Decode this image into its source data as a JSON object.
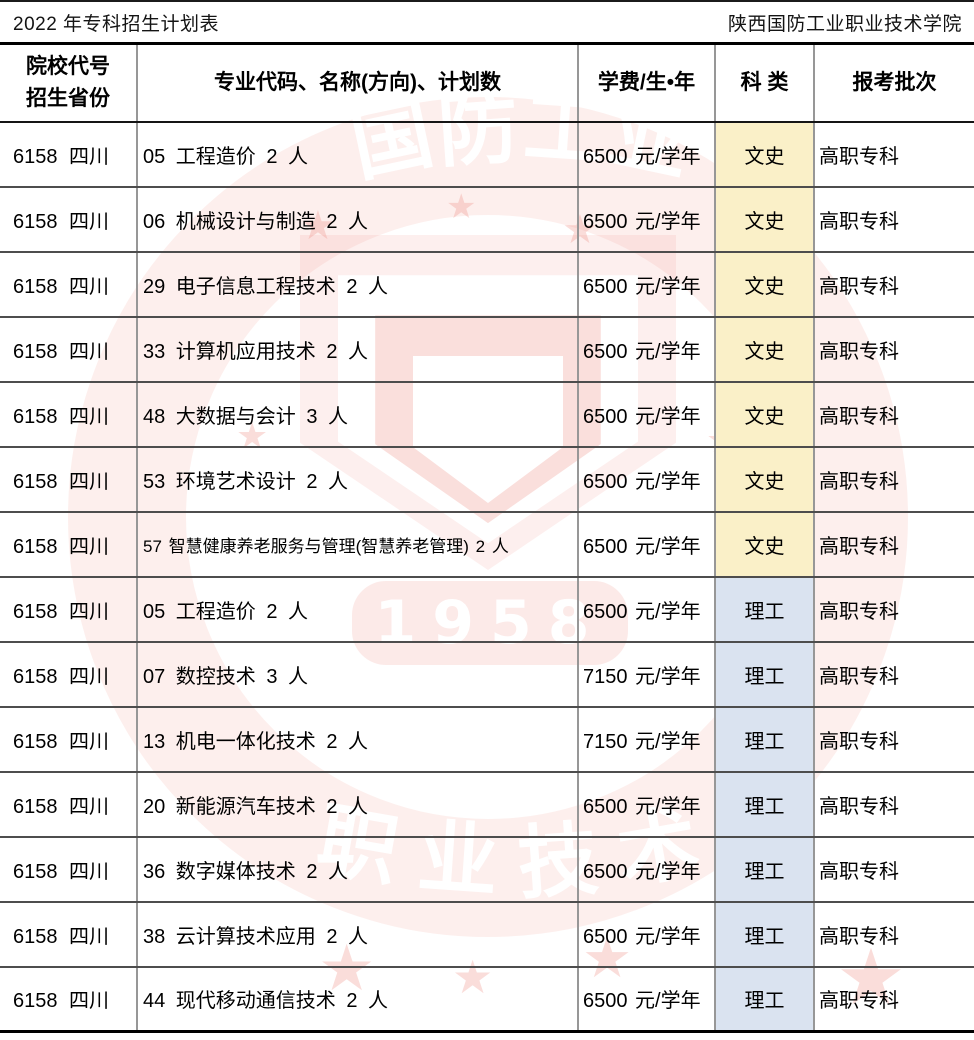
{
  "page": {
    "title_left": "2022 年专科招生计划表",
    "title_right": "陕西国防工业职业技术学院"
  },
  "table": {
    "headers": {
      "col1_line1": "院校代号",
      "col1_line2": "招生省份",
      "col2": "专业代码、名称(方向)、计划数",
      "col3": "学费/生•年",
      "col4": "科 类",
      "col5": "报考批次"
    },
    "rows": [
      {
        "code_province": "6158 四川",
        "major": "05 工程造价 2 人",
        "tuition": "6500 元/学年",
        "category": "文史",
        "category_type": "wenshi",
        "batch": "高职专科"
      },
      {
        "code_province": "6158 四川",
        "major": "06 机械设计与制造 2 人",
        "tuition": "6500 元/学年",
        "category": "文史",
        "category_type": "wenshi",
        "batch": "高职专科"
      },
      {
        "code_province": "6158 四川",
        "major": "29 电子信息工程技术 2 人",
        "tuition": "6500 元/学年",
        "category": "文史",
        "category_type": "wenshi",
        "batch": "高职专科"
      },
      {
        "code_province": "6158 四川",
        "major": "33 计算机应用技术 2 人",
        "tuition": "6500 元/学年",
        "category": "文史",
        "category_type": "wenshi",
        "batch": "高职专科"
      },
      {
        "code_province": "6158 四川",
        "major": "48 大数据与会计 3 人",
        "tuition": "6500 元/学年",
        "category": "文史",
        "category_type": "wenshi",
        "batch": "高职专科"
      },
      {
        "code_province": "6158 四川",
        "major": "53 环境艺术设计 2 人",
        "tuition": "6500 元/学年",
        "category": "文史",
        "category_type": "wenshi",
        "batch": "高职专科"
      },
      {
        "code_province": "6158 四川",
        "major": "57 智慧健康养老服务与管理(智慧养老管理) 2 人",
        "tuition": "6500 元/学年",
        "category": "文史",
        "category_type": "wenshi",
        "batch": "高职专科",
        "small": true
      },
      {
        "code_province": "6158 四川",
        "major": "05 工程造价 2 人",
        "tuition": "6500 元/学年",
        "category": "理工",
        "category_type": "ligong",
        "batch": "高职专科"
      },
      {
        "code_province": "6158 四川",
        "major": "07 数控技术 3 人",
        "tuition": "7150 元/学年",
        "category": "理工",
        "category_type": "ligong",
        "batch": "高职专科"
      },
      {
        "code_province": "6158 四川",
        "major": "13 机电一体化技术 2 人",
        "tuition": "7150 元/学年",
        "category": "理工",
        "category_type": "ligong",
        "batch": "高职专科"
      },
      {
        "code_province": "6158 四川",
        "major": "20 新能源汽车技术 2 人",
        "tuition": "6500 元/学年",
        "category": "理工",
        "category_type": "ligong",
        "batch": "高职专科"
      },
      {
        "code_province": "6158 四川",
        "major": "36 数字媒体技术 2 人",
        "tuition": "6500 元/学年",
        "category": "理工",
        "category_type": "ligong",
        "batch": "高职专科"
      },
      {
        "code_province": "6158 四川",
        "major": "38 云计算技术应用 2 人",
        "tuition": "6500 元/学年",
        "category": "理工",
        "category_type": "ligong",
        "batch": "高职专科"
      },
      {
        "code_province": "6158 四川",
        "major": "44 现代移动通信技术 2 人",
        "tuition": "6500 元/学年",
        "category": "理工",
        "category_type": "ligong",
        "batch": "高职专科"
      }
    ]
  },
  "colors": {
    "wenshi_bg": "#faf0c8",
    "ligong_bg": "#dae3f0",
    "watermark_pink": "#f39e94"
  },
  "watermark": {
    "year": "1958",
    "band_chars_top": [
      "国",
      "防",
      "工",
      "业"
    ],
    "band_chars_bottom": [
      "职",
      "业",
      "技",
      "术"
    ],
    "star_glyph": "★"
  }
}
